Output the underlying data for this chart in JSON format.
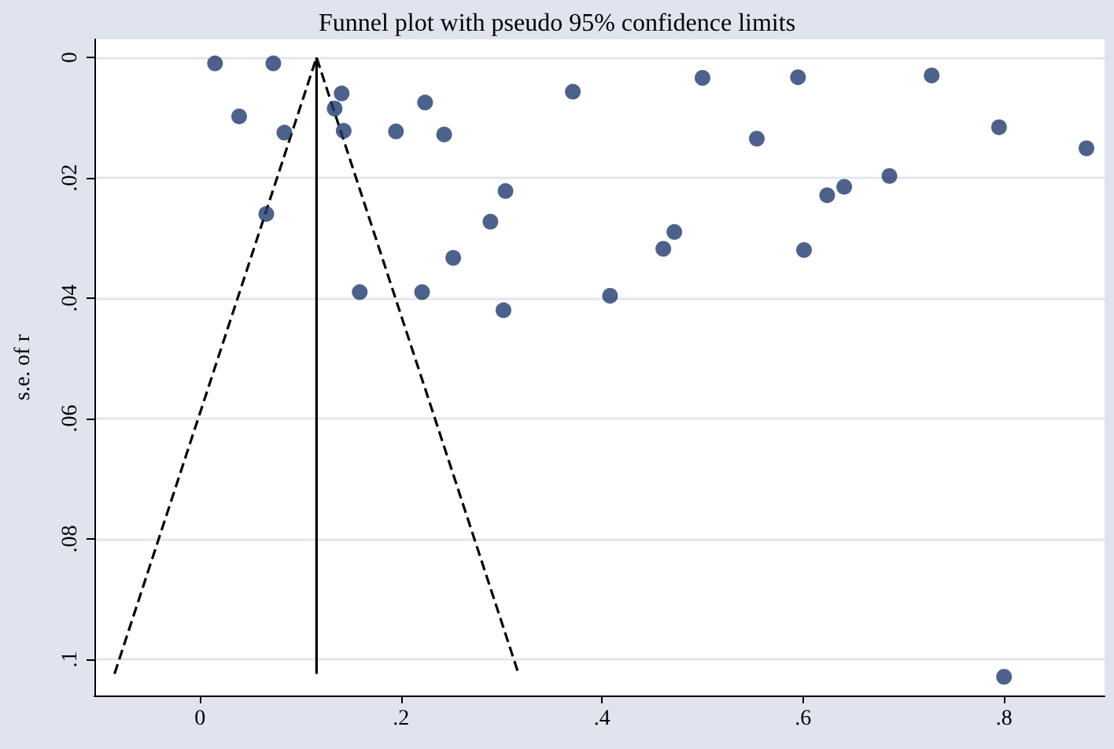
{
  "chart_data": {
    "type": "scatter",
    "title": "Funnel plot with pseudo 95% confidence limits",
    "ylabel": "s.e. of r",
    "xlim": [
      -0.105,
      0.9
    ],
    "xticks": [
      {
        "value": 0,
        "label": "0"
      },
      {
        "value": 0.2,
        "label": ".2"
      },
      {
        "value": 0.4,
        "label": ".4"
      },
      {
        "value": 0.6,
        "label": ".6"
      },
      {
        "value": 0.8,
        "label": ".8"
      }
    ],
    "ylim": [
      0.106,
      -0.003
    ],
    "yticks": [
      {
        "value": 0,
        "label": "0"
      },
      {
        "value": 0.02,
        "label": ".02"
      },
      {
        "value": 0.04,
        "label": ".04"
      },
      {
        "value": 0.06,
        "label": ".06"
      },
      {
        "value": 0.08,
        "label": ".08"
      },
      {
        "value": 0.1,
        "label": ".1"
      }
    ],
    "grid": "y",
    "marker": "circle",
    "series": [
      {
        "type": "line",
        "color": "#000000",
        "line_style": "dashed",
        "marker": "none",
        "x": [
          -0.085,
          0.116,
          0.317
        ],
        "values": [
          0.1024,
          0,
          0.1024
        ]
      },
      {
        "type": "line",
        "color": "#000000",
        "line_style": "solid",
        "marker": "none",
        "x": [
          0.116,
          0.116
        ],
        "values": [
          0,
          0.1024
        ]
      },
      {
        "color": "#1f3a6e",
        "x": [
          0.015,
          0.073,
          0.141,
          0.039,
          0.134,
          0.224,
          0.084,
          0.143,
          0.195,
          0.243,
          0.371,
          0.304,
          0.289,
          0.066,
          0.252,
          0.159,
          0.221,
          0.302,
          0.408,
          0.5,
          0.595,
          0.728,
          0.795,
          0.882,
          0.554,
          0.686,
          0.641,
          0.624,
          0.472,
          0.461,
          0.601,
          0.8
        ],
        "values": [
          0.001,
          0.001,
          0.006,
          0.0098,
          0.0085,
          0.0075,
          0.0125,
          0.0122,
          0.0123,
          0.0128,
          0.0057,
          0.0222,
          0.0273,
          0.026,
          0.0333,
          0.039,
          0.039,
          0.042,
          0.0396,
          0.0034,
          0.0033,
          0.003,
          0.0116,
          0.0151,
          0.0135,
          0.0197,
          0.0215,
          0.0229,
          0.029,
          0.0318,
          0.032,
          0.1029
        ]
      }
    ]
  }
}
